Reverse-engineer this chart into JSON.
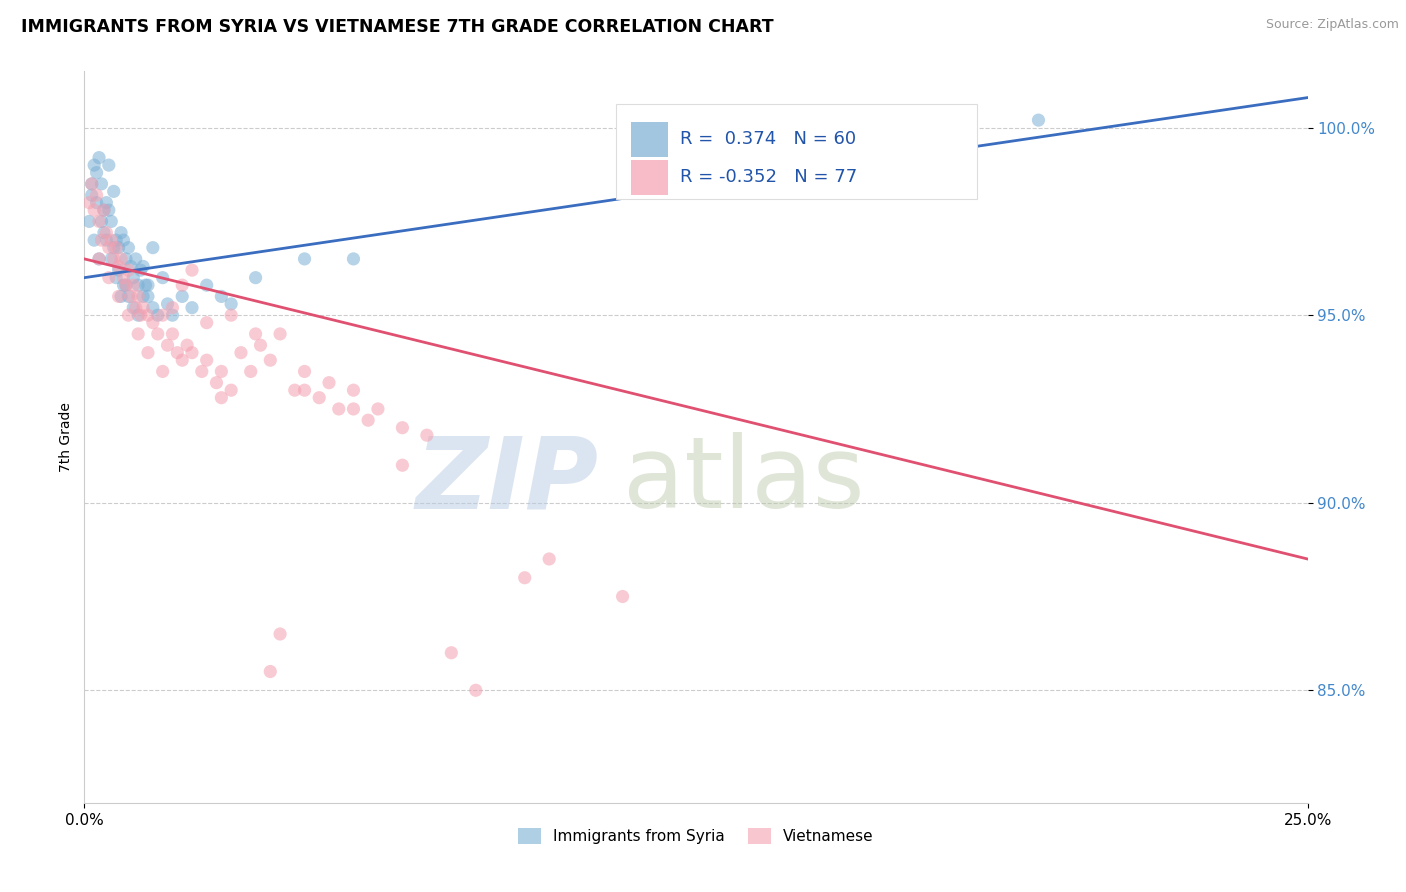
{
  "title": "IMMIGRANTS FROM SYRIA VS VIETNAMESE 7TH GRADE CORRELATION CHART",
  "source": "Source: ZipAtlas.com",
  "ylabel": "7th Grade",
  "x_min": 0.0,
  "x_max": 25.0,
  "y_min": 82.0,
  "y_max": 101.5,
  "blue_R": 0.374,
  "blue_N": 60,
  "pink_R": -0.352,
  "pink_N": 77,
  "blue_color": "#7BAFD4",
  "pink_color": "#F4A0B0",
  "blue_line_color": "#3A6DBF",
  "pink_line_color": "#E05070",
  "legend_blue_label": "Immigrants from Syria",
  "legend_pink_label": "Vietnamese",
  "blue_trend_x0": 0.0,
  "blue_trend_y0": 96.0,
  "blue_trend_x1": 25.0,
  "blue_trend_y1": 100.8,
  "pink_trend_x0": 0.0,
  "pink_trend_y0": 96.5,
  "pink_trend_x1": 25.0,
  "pink_trend_y1": 88.5,
  "blue_scatter_x": [
    0.1,
    0.15,
    0.2,
    0.25,
    0.3,
    0.35,
    0.4,
    0.45,
    0.5,
    0.55,
    0.6,
    0.65,
    0.7,
    0.75,
    0.8,
    0.85,
    0.9,
    0.95,
    1.0,
    1.05,
    1.1,
    1.15,
    1.2,
    1.25,
    1.3,
    1.4,
    1.5,
    1.6,
    1.7,
    1.8,
    2.0,
    2.2,
    2.5,
    2.8,
    3.0,
    3.5,
    0.2,
    0.3,
    0.4,
    0.5,
    0.6,
    0.7,
    0.8,
    0.9,
    1.0,
    1.1,
    1.2,
    1.3,
    0.15,
    0.25,
    0.35,
    0.45,
    0.55,
    0.65,
    0.75,
    0.85,
    1.4,
    4.5,
    5.5,
    19.5
  ],
  "blue_scatter_y": [
    97.5,
    98.2,
    99.0,
    98.8,
    99.2,
    98.5,
    97.8,
    98.0,
    99.0,
    97.5,
    98.3,
    97.0,
    96.8,
    97.2,
    97.0,
    96.5,
    96.8,
    96.3,
    96.0,
    96.5,
    95.8,
    96.2,
    95.5,
    95.8,
    95.5,
    95.2,
    95.0,
    96.0,
    95.3,
    95.0,
    95.5,
    95.2,
    95.8,
    95.5,
    95.3,
    96.0,
    97.0,
    96.5,
    97.2,
    97.8,
    96.8,
    96.2,
    95.8,
    95.5,
    95.2,
    95.0,
    96.3,
    95.8,
    98.5,
    98.0,
    97.5,
    97.0,
    96.5,
    96.0,
    95.5,
    95.8,
    96.8,
    96.5,
    96.5,
    100.2
  ],
  "pink_scatter_x": [
    0.1,
    0.15,
    0.2,
    0.25,
    0.3,
    0.35,
    0.4,
    0.45,
    0.5,
    0.55,
    0.6,
    0.65,
    0.7,
    0.75,
    0.8,
    0.85,
    0.9,
    0.95,
    1.0,
    1.05,
    1.1,
    1.15,
    1.2,
    1.3,
    1.4,
    1.5,
    1.6,
    1.7,
    1.8,
    1.9,
    2.0,
    2.1,
    2.2,
    2.4,
    2.5,
    2.7,
    2.8,
    3.0,
    3.2,
    3.4,
    3.6,
    3.8,
    4.0,
    4.3,
    4.5,
    4.8,
    5.0,
    5.2,
    5.5,
    5.8,
    6.0,
    6.5,
    7.0,
    0.3,
    0.5,
    0.7,
    0.9,
    1.1,
    1.3,
    1.6,
    2.0,
    2.5,
    3.0,
    4.0,
    5.5,
    9.0,
    9.5,
    11.0,
    7.5,
    8.0,
    6.5,
    1.8,
    2.2,
    3.5,
    4.5,
    2.8,
    3.8
  ],
  "pink_scatter_y": [
    98.0,
    98.5,
    97.8,
    98.2,
    97.5,
    97.0,
    97.8,
    97.2,
    96.8,
    97.0,
    96.5,
    96.8,
    96.3,
    96.5,
    96.0,
    95.8,
    96.2,
    95.5,
    95.8,
    95.2,
    95.5,
    95.0,
    95.2,
    95.0,
    94.8,
    94.5,
    95.0,
    94.2,
    94.5,
    94.0,
    93.8,
    94.2,
    94.0,
    93.5,
    93.8,
    93.2,
    93.5,
    93.0,
    94.0,
    93.5,
    94.2,
    93.8,
    94.5,
    93.0,
    93.5,
    92.8,
    93.2,
    92.5,
    93.0,
    92.2,
    92.5,
    92.0,
    91.8,
    96.5,
    96.0,
    95.5,
    95.0,
    94.5,
    94.0,
    93.5,
    95.8,
    94.8,
    95.0,
    86.5,
    92.5,
    88.0,
    88.5,
    87.5,
    86.0,
    85.0,
    91.0,
    95.2,
    96.2,
    94.5,
    93.0,
    92.8,
    85.5
  ]
}
